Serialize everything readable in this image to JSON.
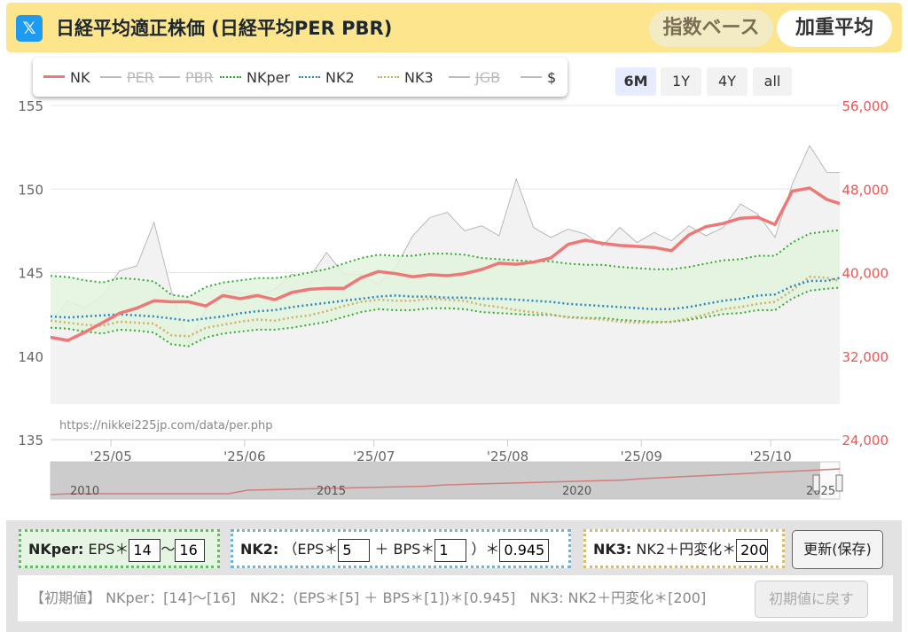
{
  "header": {
    "logo": "𝕏",
    "title": "日経平均適正株価 (日経平均PER PBR)",
    "btn_index": "指数ベース",
    "btn_weighted": "加重平均"
  },
  "legend": [
    {
      "label": "NK",
      "color": "#ee7777",
      "style": "solid",
      "enabled": true
    },
    {
      "label": "PER",
      "color": "#bbbbbb",
      "style": "solid",
      "enabled": false
    },
    {
      "label": "PBR",
      "color": "#bbbbbb",
      "style": "solid",
      "enabled": false
    },
    {
      "label": "NKper",
      "color": "#22aa22",
      "style": "dotted",
      "enabled": true
    },
    {
      "label": "NK2",
      "color": "#2288bb",
      "style": "dotted",
      "enabled": true
    },
    {
      "label": "NK3",
      "color": "#ccaa55",
      "style": "dotted",
      "enabled": true
    },
    {
      "label": "JGB",
      "color": "#bbbbbb",
      "style": "solid",
      "enabled": false
    },
    {
      "label": "$",
      "color": "#bbbbbb",
      "style": "solid",
      "enabled": true
    }
  ],
  "ranges": [
    {
      "label": "6M",
      "active": true
    },
    {
      "label": "1Y",
      "active": false
    },
    {
      "label": "4Y",
      "active": false
    },
    {
      "label": "all",
      "active": false
    }
  ],
  "watermark": "https://nikkei225jp.com/data/per.php",
  "navigator_labels": [
    "2010",
    "2015",
    "2020",
    "2025"
  ],
  "chart_data": {
    "type": "line",
    "x": [
      "2025-04-17",
      "2025-04-21",
      "2025-04-25",
      "2025-04-29",
      "2025-05-03",
      "2025-05-07",
      "2025-05-11",
      "2025-05-15",
      "2025-05-19",
      "2025-05-23",
      "2025-05-27",
      "2025-05-31",
      "2025-06-04",
      "2025-06-08",
      "2025-06-12",
      "2025-06-16",
      "2025-06-20",
      "2025-06-24",
      "2025-06-28",
      "2025-07-02",
      "2025-07-06",
      "2025-07-10",
      "2025-07-14",
      "2025-07-18",
      "2025-07-22",
      "2025-07-26",
      "2025-07-30",
      "2025-08-03",
      "2025-08-07",
      "2025-08-11",
      "2025-08-15",
      "2025-08-19",
      "2025-08-23",
      "2025-08-27",
      "2025-08-31",
      "2025-09-04",
      "2025-09-08",
      "2025-09-12",
      "2025-09-16",
      "2025-09-20",
      "2025-09-24",
      "2025-09-28",
      "2025-10-02",
      "2025-10-06",
      "2025-10-10",
      "2025-10-14",
      "2025-10-17"
    ],
    "x_ticks": [
      "'25/05",
      "'25/06",
      "'25/07",
      "'25/08",
      "'25/09",
      "'25/10"
    ],
    "left_axis": {
      "ticks": [
        135,
        140,
        145,
        150,
        155
      ],
      "range": [
        135,
        155
      ]
    },
    "right_axis": {
      "ticks": [
        "24,000",
        "32,000",
        "40,000",
        "48,000",
        "56,000"
      ],
      "range": [
        24000,
        56000
      ],
      "color": "#ee5555"
    },
    "series": [
      {
        "name": "NK",
        "axis": "right",
        "values": [
          33800,
          33500,
          34300,
          35200,
          36100,
          36600,
          37300,
          37200,
          37200,
          36800,
          37800,
          37500,
          37800,
          37400,
          38100,
          38400,
          38500,
          38500,
          39500,
          40100,
          39900,
          39600,
          39800,
          39700,
          39900,
          40300,
          40900,
          40800,
          41000,
          41400,
          42700,
          43100,
          42800,
          42600,
          42500,
          42400,
          42100,
          43600,
          44400,
          44700,
          45200,
          45300,
          44600,
          47800,
          48100,
          47000,
          46600
        ]
      },
      {
        "name": "$",
        "axis": "left",
        "values": [
          142.0,
          143.3,
          142.9,
          143.6,
          145.1,
          145.4,
          148.0,
          143.9,
          140.8,
          142.8,
          143.9,
          143.8,
          143.7,
          144.0,
          144.9,
          144.7,
          146.2,
          144.9,
          144.9,
          144.3,
          145.3,
          147.2,
          148.3,
          148.6,
          147.5,
          147.8,
          147.2,
          150.6,
          147.7,
          147.1,
          147.6,
          147.3,
          146.6,
          147.7,
          146.8,
          147.4,
          146.9,
          147.8,
          147.2,
          147.7,
          149.1,
          148.5,
          147.1,
          150.3,
          152.6,
          151.0,
          151.0
        ]
      },
      {
        "name": "NKper",
        "axis": "right",
        "values": [
          37200,
          37100,
          36800,
          36600,
          37000,
          36900,
          36700,
          35500,
          35300,
          36200,
          36600,
          36800,
          37000,
          37000,
          37200,
          37500,
          37800,
          38300,
          38800,
          39100,
          39000,
          39000,
          39200,
          39200,
          39100,
          38800,
          38700,
          38600,
          38500,
          38500,
          38300,
          38200,
          38200,
          38000,
          37900,
          37800,
          37800,
          38000,
          38300,
          38600,
          38700,
          39000,
          39000,
          40200,
          41000,
          41200,
          41300
        ]
      },
      {
        "name": "NK2",
        "axis": "right",
        "values": [
          35800,
          35700,
          35800,
          35900,
          36000,
          35900,
          35800,
          35600,
          35400,
          35600,
          35800,
          36100,
          36300,
          36400,
          36700,
          36900,
          37100,
          37300,
          37500,
          37700,
          37800,
          37700,
          37700,
          37600,
          37600,
          37500,
          37500,
          37400,
          37300,
          37200,
          37000,
          36900,
          36800,
          36700,
          36600,
          36500,
          36500,
          36700,
          37000,
          37300,
          37500,
          37800,
          37900,
          38700,
          39200,
          39200,
          39500
        ]
      },
      {
        "name": "NK3",
        "axis": "right",
        "values": [
          35400,
          35200,
          35000,
          34900,
          35300,
          35200,
          35100,
          34000,
          33900,
          34700,
          35000,
          35300,
          35500,
          35400,
          35700,
          35900,
          36300,
          36800,
          37200,
          37400,
          37300,
          37300,
          37500,
          37400,
          37300,
          36900,
          36700,
          36400,
          36200,
          36000,
          35700,
          35600,
          35500,
          35300,
          35200,
          35200,
          35300,
          35600,
          36000,
          36500,
          36700,
          37000,
          37200,
          38300,
          39600,
          39500,
          39200
        ]
      }
    ],
    "band": {
      "name": "NKper",
      "upper_ratio": 1.0667,
      "lower_ratio": 0.9333
    },
    "grid": true,
    "legend_position": "top-left"
  },
  "controls": {
    "nkper_label": "NKper:",
    "nkper_text1": "EPS＊",
    "nkper_min": "14",
    "nkper_sep": "〜",
    "nkper_max": "16",
    "nk2_label": "NK2:",
    "nk2_text1": "（EPS＊",
    "nk2_eps": "5",
    "nk2_text2": "＋ BPS＊",
    "nk2_bps": "1",
    "nk2_text3": "）＊",
    "nk2_mult": "0.945",
    "nk3_label": "NK3:",
    "nk3_text1": "NK2＋円変化＊",
    "nk3_mult": "200",
    "update_label": "更新(保存)",
    "defaults_text": "【初期値】 NKper：[14]〜[16]　NK2：(EPS＊[5] ＋ BPS＊[1])＊[0.945]　NK3: NK2＋円変化＊[200]",
    "reset_label": "初期値に戻す"
  }
}
